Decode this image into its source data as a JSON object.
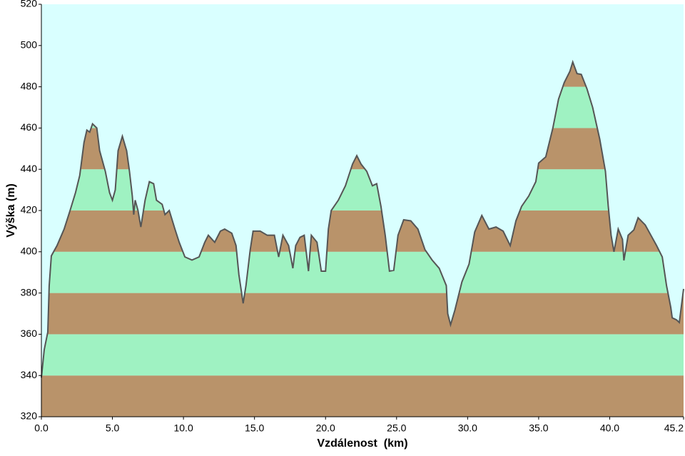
{
  "chart_data": {
    "type": "area",
    "xlabel": "Vzdálenost  (km)",
    "ylabel": "Výška (m)",
    "background": "#d9ffff",
    "band_colors": [
      "#b9936a",
      "#9ff2c2"
    ],
    "line_color": "#555555",
    "xlim": [
      0,
      45.2
    ],
    "ylim": [
      320,
      520
    ],
    "xticks": [
      {
        "value": 0,
        "label": "0.0"
      },
      {
        "value": 5,
        "label": "5.0"
      },
      {
        "value": 10,
        "label": "10.0"
      },
      {
        "value": 15,
        "label": "15.0"
      },
      {
        "value": 20,
        "label": "20.0"
      },
      {
        "value": 25,
        "label": "25.0"
      },
      {
        "value": 30,
        "label": "30.0"
      },
      {
        "value": 35,
        "label": "35.0"
      },
      {
        "value": 40,
        "label": "40.0"
      },
      45.2
    ],
    "yticks": [
      320,
      340,
      360,
      380,
      400,
      420,
      440,
      460,
      480,
      500,
      520
    ],
    "x": [
      0,
      0.2,
      0.45,
      0.55,
      0.7,
      1.1,
      1.6,
      2.0,
      2.4,
      2.7,
      3.0,
      3.2,
      3.4,
      3.6,
      3.9,
      4.1,
      4.5,
      4.8,
      5.0,
      5.2,
      5.4,
      5.7,
      6.0,
      6.2,
      6.4,
      6.5,
      6.6,
      6.8,
      7.0,
      7.3,
      7.6,
      7.9,
      8.1,
      8.5,
      8.7,
      9.0,
      9.4,
      9.7,
      10.1,
      10.6,
      11.1,
      11.5,
      11.75,
      12.2,
      12.6,
      12.9,
      13.4,
      13.7,
      13.9,
      14.2,
      14.4,
      14.7,
      14.9,
      15.4,
      15.9,
      16.4,
      16.7,
      17.0,
      17.4,
      17.7,
      17.9,
      18.2,
      18.5,
      18.8,
      19.0,
      19.4,
      19.7,
      20.0,
      20.2,
      20.4,
      20.9,
      21.4,
      21.9,
      22.2,
      22.5,
      22.9,
      23.3,
      23.6,
      23.9,
      24.2,
      24.5,
      24.8,
      25.1,
      25.5,
      26.0,
      26.5,
      27.0,
      27.5,
      28.0,
      28.5,
      28.6,
      28.8,
      29.1,
      29.6,
      30.1,
      30.5,
      31.0,
      31.5,
      32.0,
      32.5,
      33.0,
      33.4,
      33.8,
      34.3,
      34.8,
      35.0,
      35.5,
      36.0,
      36.4,
      36.8,
      37.2,
      37.4,
      37.7,
      38.0,
      38.4,
      38.8,
      39.3,
      39.7,
      39.9,
      40.1,
      40.3,
      40.6,
      40.9,
      41.0,
      41.3,
      41.7,
      42.0,
      42.5,
      42.9,
      43.3,
      43.7,
      44.0,
      44.3,
      44.4,
      44.7,
      44.9,
      45.2
    ],
    "values": [
      339,
      352.5,
      361,
      383.6,
      398,
      403,
      411,
      419.6,
      428.6,
      437,
      453,
      459,
      458,
      462,
      460,
      449,
      439,
      428.6,
      425,
      430,
      449,
      456,
      449,
      439,
      427,
      418,
      425,
      420,
      412,
      425,
      434,
      433,
      425,
      423,
      418,
      420,
      411,
      404.6,
      397.5,
      396,
      397.5,
      404.6,
      408,
      404.6,
      410,
      411,
      409,
      403,
      389,
      375,
      383.6,
      401,
      410,
      410,
      408,
      408,
      397.5,
      408,
      403,
      392,
      403,
      407,
      408,
      390.6,
      408,
      404.6,
      390.6,
      390.6,
      411,
      420,
      425,
      432,
      442.5,
      446.6,
      442.5,
      439,
      432,
      433,
      422,
      408,
      390.6,
      391,
      408,
      415.5,
      415,
      411,
      401,
      396,
      392,
      383.6,
      370,
      364.6,
      371.6,
      385.4,
      394,
      409.6,
      417.6,
      411,
      412,
      410,
      403,
      415,
      422,
      427,
      434,
      443,
      446,
      460,
      474,
      482,
      487.5,
      492,
      486.4,
      486,
      479,
      470,
      454.6,
      439,
      422,
      408,
      400,
      411,
      406,
      395.8,
      408,
      410.6,
      416.5,
      413,
      408,
      403,
      397.5,
      383.6,
      373,
      368,
      367,
      365.7,
      382
    ]
  }
}
